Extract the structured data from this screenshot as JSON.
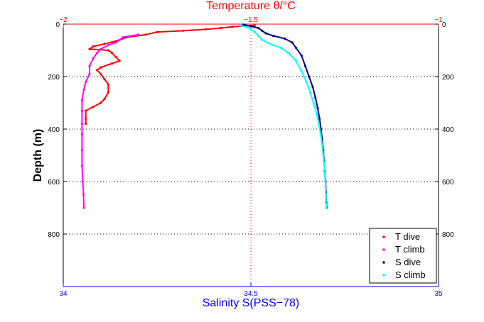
{
  "chart_data": {
    "type": "scatter",
    "top_xlabel": "Temperature θ/°C",
    "top_xlim": [
      -2,
      -1
    ],
    "top_xticks": [
      "−2",
      "−1.5",
      "−1"
    ],
    "xlabel": "Salinity S(PSS−78)",
    "xlim": [
      34,
      35
    ],
    "xticks": [
      "34",
      "34.5",
      "35"
    ],
    "ylabel": "Depth (m)",
    "ylim": [
      0,
      1000
    ],
    "yticks_left": [
      "0",
      "200",
      "400",
      "600",
      "800"
    ],
    "yticks_right": [
      "0",
      "200",
      "400",
      "600",
      "800"
    ],
    "grid": true,
    "legend_position": "bottom-right",
    "colors": {
      "temperature_axis": "#ff0000",
      "salinity_axis": "#0000ff",
      "grid": "#000000"
    },
    "series": [
      {
        "name": "T dive",
        "axis": "temperature",
        "color": "#ff0000",
        "points": [
          [
            -1.49,
            5
          ],
          [
            -1.55,
            10
          ],
          [
            -1.58,
            15
          ],
          [
            -1.62,
            20
          ],
          [
            -1.68,
            25
          ],
          [
            -1.75,
            30
          ],
          [
            -1.78,
            40
          ],
          [
            -1.83,
            50
          ],
          [
            -1.86,
            65
          ],
          [
            -1.89,
            75
          ],
          [
            -1.92,
            85
          ],
          [
            -1.93,
            95
          ],
          [
            -1.88,
            100
          ],
          [
            -1.87,
            110
          ],
          [
            -1.86,
            125
          ],
          [
            -1.85,
            140
          ],
          [
            -1.87,
            150
          ],
          [
            -1.9,
            165
          ],
          [
            -1.91,
            175
          ],
          [
            -1.9,
            190
          ],
          [
            -1.89,
            210
          ],
          [
            -1.88,
            230
          ],
          [
            -1.88,
            260
          ],
          [
            -1.89,
            285
          ],
          [
            -1.9,
            300
          ],
          [
            -1.92,
            315
          ],
          [
            -1.94,
            330
          ],
          [
            -1.94,
            360
          ],
          [
            -1.94,
            380
          ]
        ]
      },
      {
        "name": "T climb",
        "axis": "temperature",
        "color": "#ff00ff",
        "points": [
          [
            -1.8,
            40
          ],
          [
            -1.84,
            50
          ],
          [
            -1.85,
            60
          ],
          [
            -1.86,
            70
          ],
          [
            -1.88,
            80
          ],
          [
            -1.9,
            95
          ],
          [
            -1.91,
            110
          ],
          [
            -1.92,
            130
          ],
          [
            -1.93,
            160
          ],
          [
            -1.93,
            190
          ],
          [
            -1.94,
            220
          ],
          [
            -1.945,
            250
          ],
          [
            -1.95,
            290
          ],
          [
            -1.95,
            330
          ],
          [
            -1.95,
            380
          ],
          [
            -1.95,
            420
          ],
          [
            -1.95,
            480
          ],
          [
            -1.95,
            540
          ],
          [
            -1.948,
            600
          ],
          [
            -1.946,
            650
          ],
          [
            -1.945,
            700
          ]
        ]
      },
      {
        "name": "S dive",
        "axis": "salinity",
        "color": "#00008b",
        "points": [
          [
            34.48,
            2
          ],
          [
            34.5,
            8
          ],
          [
            34.52,
            15
          ],
          [
            34.53,
            25
          ],
          [
            34.54,
            35
          ],
          [
            34.56,
            45
          ],
          [
            34.59,
            55
          ],
          [
            34.61,
            70
          ],
          [
            34.62,
            90
          ],
          [
            34.635,
            120
          ],
          [
            34.645,
            160
          ],
          [
            34.655,
            200
          ],
          [
            34.665,
            240
          ],
          [
            34.672,
            280
          ],
          [
            34.678,
            320
          ],
          [
            34.683,
            360
          ],
          [
            34.687,
            400
          ],
          [
            34.69,
            440
          ],
          [
            34.693,
            480
          ],
          [
            34.695,
            520
          ],
          [
            34.697,
            560
          ],
          [
            34.699,
            600
          ],
          [
            34.7,
            640
          ],
          [
            34.701,
            680
          ],
          [
            34.702,
            700
          ]
        ]
      },
      {
        "name": "S climb",
        "axis": "salinity",
        "color": "#00ffff",
        "points": [
          [
            34.47,
            5
          ],
          [
            34.49,
            12
          ],
          [
            34.5,
            20
          ],
          [
            34.51,
            30
          ],
          [
            34.52,
            45
          ],
          [
            34.53,
            60
          ],
          [
            34.55,
            75
          ],
          [
            34.58,
            90
          ],
          [
            34.6,
            110
          ],
          [
            34.62,
            140
          ],
          [
            34.635,
            180
          ],
          [
            34.648,
            220
          ],
          [
            34.658,
            260
          ],
          [
            34.667,
            300
          ],
          [
            34.675,
            340
          ],
          [
            34.681,
            380
          ],
          [
            34.686,
            420
          ],
          [
            34.69,
            460
          ],
          [
            34.693,
            500
          ],
          [
            34.696,
            540
          ],
          [
            34.698,
            580
          ],
          [
            34.699,
            620
          ],
          [
            34.7,
            660
          ],
          [
            34.701,
            700
          ]
        ]
      }
    ]
  }
}
